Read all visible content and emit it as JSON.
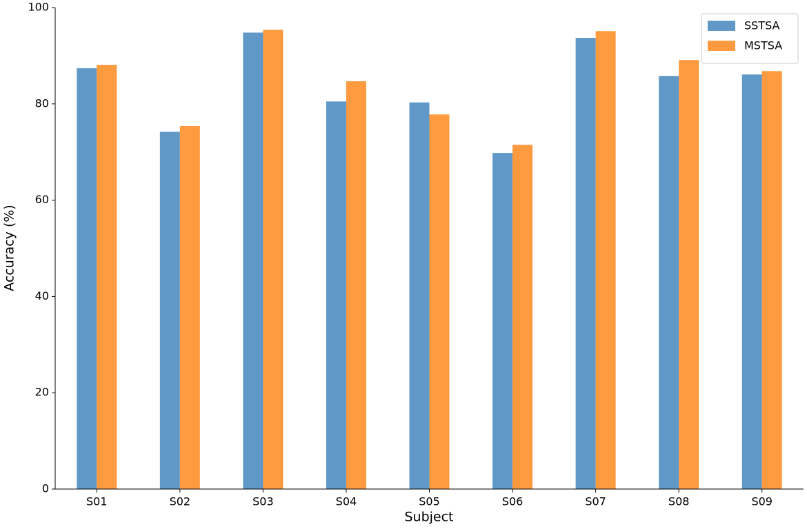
{
  "chart_data": {
    "type": "bar",
    "xlabel": "Subject",
    "ylabel": "Accuracy (%)",
    "categories": [
      "S01",
      "S02",
      "S03",
      "S04",
      "S05",
      "S06",
      "S07",
      "S08",
      "S09"
    ],
    "series": [
      {
        "name": "SSTSA",
        "color": "#6098c8",
        "values": [
          87.4,
          74.2,
          94.8,
          80.5,
          80.3,
          69.8,
          93.7,
          85.8,
          86.1
        ]
      },
      {
        "name": "MSTSA",
        "color": "#fe9a40",
        "values": [
          88.1,
          75.4,
          95.4,
          84.7,
          77.8,
          71.5,
          95.1,
          89.1,
          86.8
        ]
      }
    ],
    "ylim": [
      0,
      100
    ],
    "yticks": [
      0,
      20,
      40,
      60,
      80,
      100
    ],
    "grid": false,
    "legend": "upper right"
  }
}
